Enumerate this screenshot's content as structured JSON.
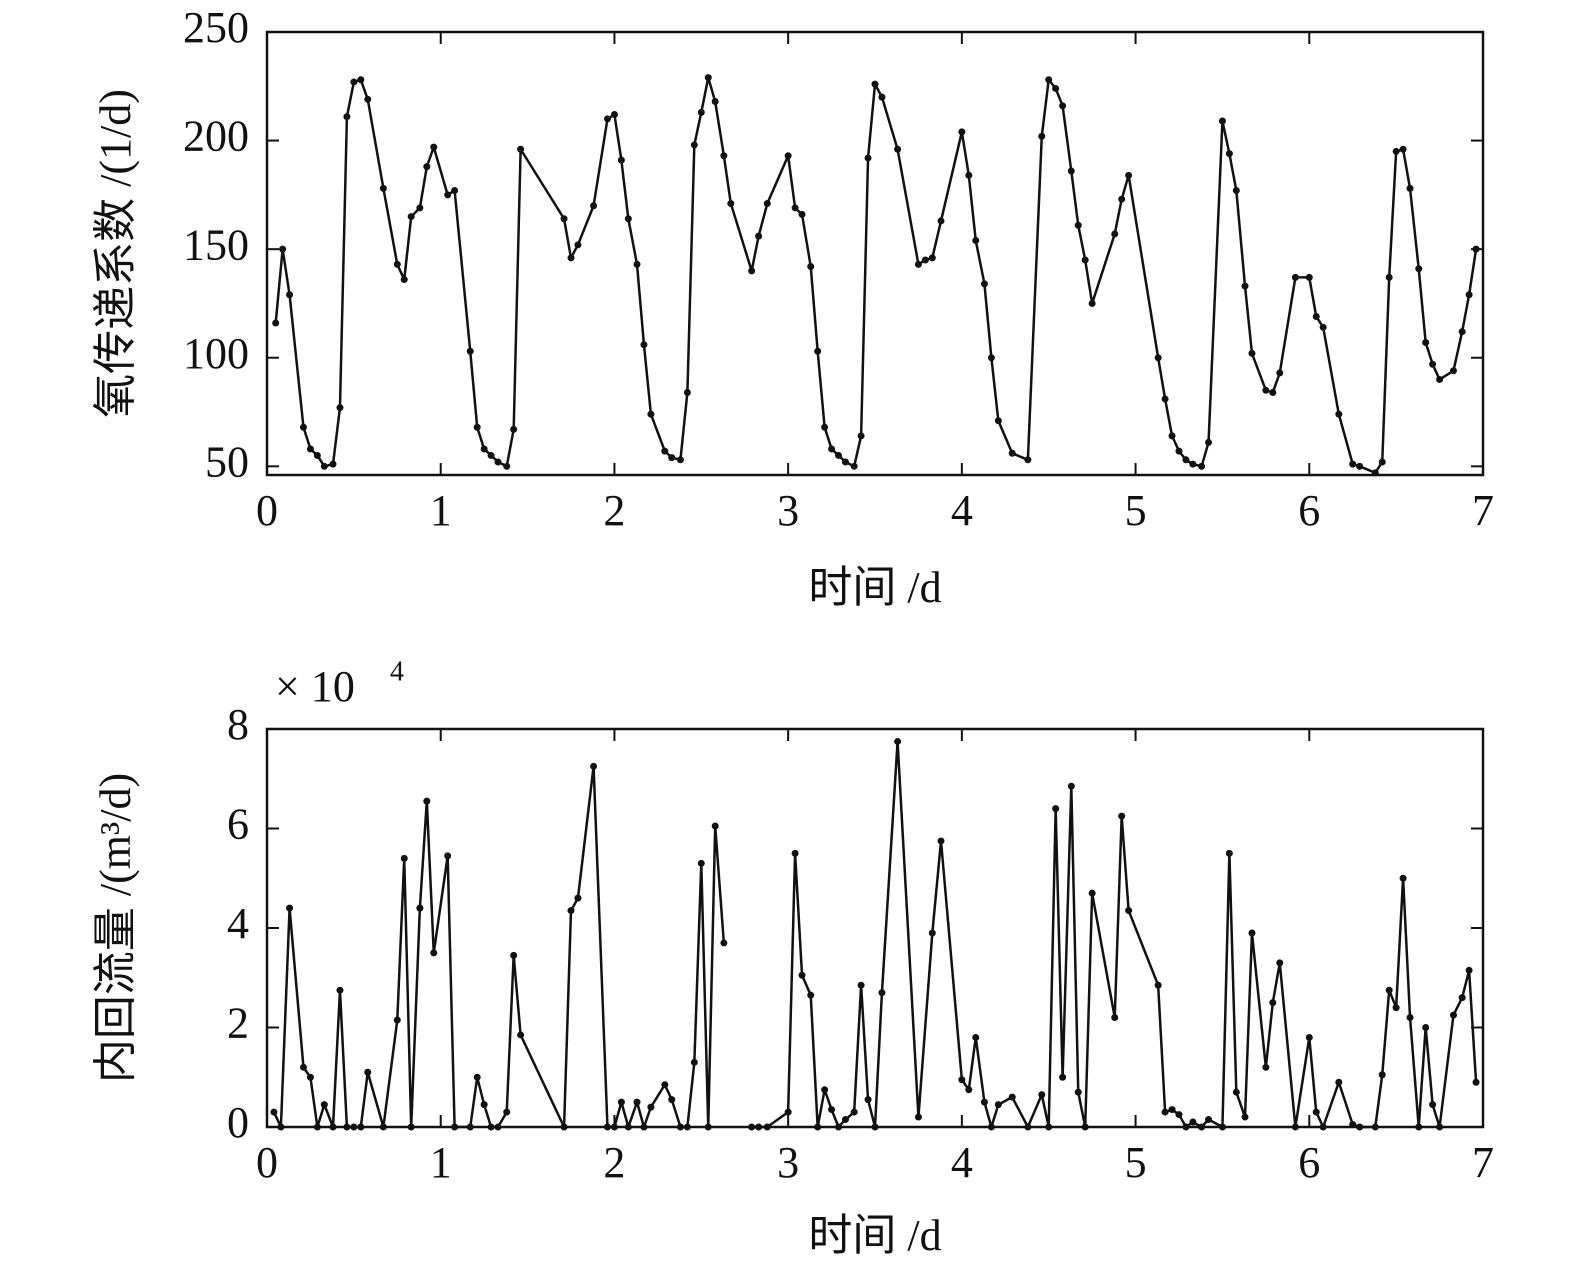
{
  "chart_data": [
    {
      "type": "line",
      "xlabel": "时间 /d",
      "ylabel": "氧传递系数 /(1/d)",
      "color": "#111111",
      "xlim": [
        0,
        7
      ],
      "xticks": [
        0,
        1,
        2,
        3,
        4,
        5,
        6,
        7
      ],
      "ylim": [
        46,
        250
      ],
      "yticks": [
        50,
        100,
        150,
        200,
        250
      ],
      "x": [
        0.05,
        0.09,
        0.13,
        0.21,
        0.25,
        0.29,
        0.33,
        0.38,
        0.42,
        0.46,
        0.5,
        0.54,
        0.58,
        0.67,
        0.75,
        0.79,
        0.83,
        0.88,
        0.92,
        0.96,
        1.04,
        1.08,
        1.17,
        1.21,
        1.25,
        1.29,
        1.33,
        1.38,
        1.42,
        1.46,
        1.71,
        1.75,
        1.79,
        1.88,
        1.96,
        2.0,
        2.04,
        2.08,
        2.13,
        2.17,
        2.21,
        2.29,
        2.33,
        2.38,
        2.42,
        2.46,
        2.5,
        2.54,
        2.58,
        2.63,
        2.67,
        2.79,
        2.83,
        2.88,
        3.0,
        3.04,
        3.08,
        3.13,
        3.17,
        3.21,
        3.25,
        3.29,
        3.33,
        3.38,
        3.42,
        3.46,
        3.5,
        3.54,
        3.63,
        3.75,
        3.79,
        3.83,
        3.88,
        4.0,
        4.04,
        4.08,
        4.13,
        4.17,
        4.21,
        4.29,
        4.38,
        4.46,
        4.5,
        4.54,
        4.58,
        4.63,
        4.67,
        4.71,
        4.75,
        4.88,
        4.92,
        4.96,
        5.13,
        5.17,
        5.21,
        5.25,
        5.29,
        5.33,
        5.38,
        5.42,
        5.5,
        5.54,
        5.58,
        5.63,
        5.67,
        5.75,
        5.79,
        5.83,
        5.92,
        6.0,
        6.04,
        6.08,
        6.17,
        6.25,
        6.29,
        6.38,
        6.42,
        6.46,
        6.5,
        6.54,
        6.58,
        6.63,
        6.67,
        6.71,
        6.75,
        6.83,
        6.88,
        6.92,
        6.96
      ],
      "values": [
        116,
        150,
        129,
        68,
        58,
        55,
        50,
        51,
        77,
        211,
        227,
        228,
        219,
        178,
        143,
        136,
        165,
        169,
        188,
        197,
        175,
        177,
        103,
        68,
        58,
        55,
        52,
        50,
        67,
        196,
        164,
        146,
        152,
        170,
        210,
        212,
        191,
        164,
        143,
        106,
        74,
        57,
        54,
        53,
        84,
        198,
        213,
        229,
        218,
        193,
        171,
        140,
        156,
        171,
        193,
        169,
        166,
        142,
        103,
        68,
        58,
        55,
        52,
        50,
        64,
        192,
        226,
        220,
        196,
        143,
        145,
        146,
        163,
        204,
        184,
        154,
        134,
        100,
        71,
        56,
        53,
        202,
        228,
        224,
        216,
        186,
        161,
        145,
        125,
        157,
        173,
        184,
        100,
        81,
        64,
        57,
        53,
        51,
        50,
        61,
        209,
        194,
        177,
        133,
        102,
        85,
        84,
        93,
        137,
        137,
        119,
        114,
        74,
        51,
        50,
        47,
        52,
        137,
        195,
        196,
        178,
        141,
        107,
        97,
        90,
        94,
        112,
        129,
        150
      ]
    },
    {
      "type": "line",
      "xlabel": "时间 /d",
      "ylabel": "内回流量 /(m³/d)",
      "color": "#111111",
      "offset_text": "× 10",
      "offset_exponent": "4",
      "xlim": [
        0,
        7
      ],
      "xticks": [
        0,
        1,
        2,
        3,
        4,
        5,
        6,
        7
      ],
      "ylim": [
        0,
        8
      ],
      "yticks": [
        0,
        2,
        4,
        6,
        8
      ],
      "x": [
        0.04,
        0.08,
        0.13,
        0.21,
        0.25,
        0.29,
        0.33,
        0.38,
        0.42,
        0.46,
        0.5,
        0.54,
        0.58,
        0.67,
        0.75,
        0.79,
        0.83,
        0.88,
        0.92,
        0.96,
        1.04,
        1.08,
        1.17,
        1.21,
        1.25,
        1.29,
        1.33,
        1.38,
        1.42,
        1.46,
        1.71,
        1.75,
        1.79,
        1.88,
        1.96,
        2.0,
        2.04,
        2.08,
        2.13,
        2.17,
        2.21,
        2.29,
        2.33,
        2.38,
        2.42,
        2.46,
        2.5,
        2.54,
        2.58,
        2.63,
        null,
        2.79,
        2.83,
        2.88,
        3.0,
        3.04,
        3.08,
        3.13,
        3.17,
        3.21,
        3.25,
        3.29,
        3.33,
        3.38,
        3.42,
        3.46,
        3.5,
        3.54,
        3.63,
        3.75,
        3.83,
        3.88,
        4.0,
        4.04,
        4.08,
        4.13,
        4.17,
        4.21,
        4.29,
        4.38,
        4.46,
        4.5,
        4.54,
        4.58,
        4.63,
        4.67,
        4.71,
        4.75,
        4.88,
        4.92,
        4.96,
        5.13,
        5.17,
        5.21,
        5.25,
        5.29,
        5.33,
        5.38,
        5.42,
        5.5,
        5.54,
        5.58,
        5.63,
        5.67,
        5.75,
        5.79,
        5.83,
        5.92,
        6.0,
        6.04,
        6.08,
        6.17,
        6.25,
        6.29,
        6.38,
        6.42,
        6.46,
        6.5,
        6.54,
        6.58,
        6.63,
        6.67,
        6.71,
        6.75,
        6.83,
        6.88,
        6.92,
        6.96
      ],
      "values": [
        0.3,
        0,
        4.4,
        1.2,
        1.0,
        0,
        0.45,
        0,
        2.75,
        0,
        0,
        0,
        1.1,
        0,
        2.15,
        5.4,
        0,
        4.4,
        6.55,
        3.5,
        5.45,
        0,
        0,
        1.0,
        0.45,
        0,
        0,
        0.3,
        3.45,
        1.85,
        0,
        4.35,
        4.6,
        7.25,
        0,
        0,
        0.5,
        0,
        0.5,
        0,
        0.4,
        0.85,
        0.55,
        0,
        0,
        1.3,
        5.3,
        0,
        6.05,
        3.7,
        null,
        0,
        0,
        0,
        0.3,
        5.5,
        3.05,
        2.65,
        0,
        0.75,
        0.35,
        0,
        0.15,
        0.3,
        2.85,
        0.55,
        0,
        2.7,
        7.75,
        0.2,
        3.9,
        5.75,
        0.95,
        0.75,
        1.8,
        0.5,
        0,
        0.45,
        0.6,
        0,
        0.65,
        0,
        6.4,
        1.0,
        6.85,
        0.7,
        0,
        4.7,
        2.2,
        6.25,
        4.35,
        2.85,
        0.3,
        0.35,
        0.25,
        0,
        0.1,
        0,
        0.15,
        0,
        5.5,
        0.7,
        0.2,
        3.9,
        1.2,
        2.5,
        3.3,
        0,
        1.8,
        0.3,
        0,
        0.9,
        0.05,
        0,
        0,
        1.05,
        2.75,
        2.4,
        5.0,
        2.2,
        0,
        2.0,
        0.45,
        0,
        2.25,
        2.6,
        3.15,
        0.9
      ]
    }
  ]
}
